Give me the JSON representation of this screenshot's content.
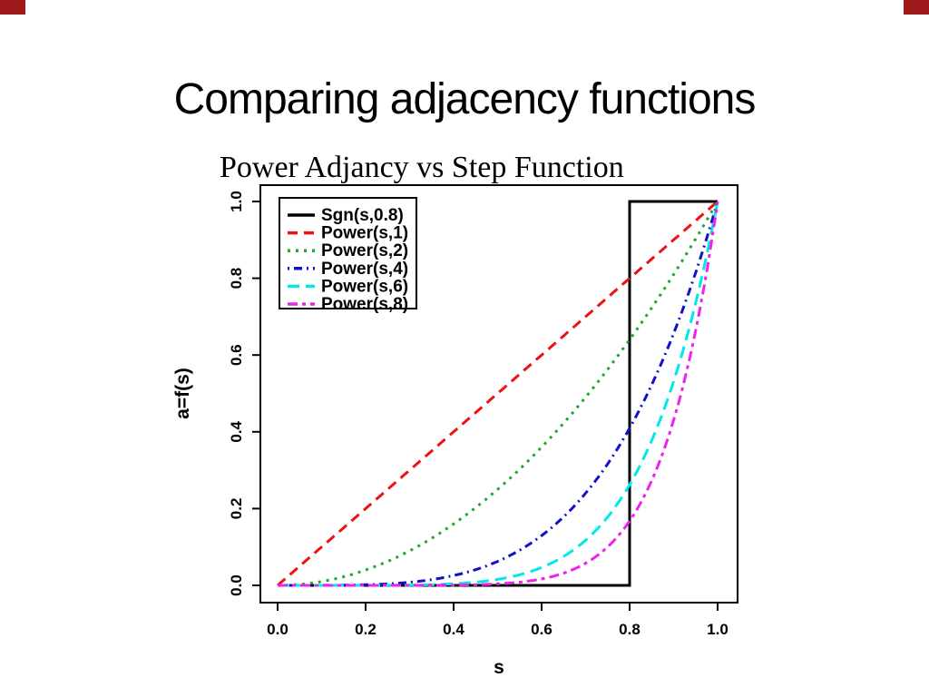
{
  "slide": {
    "title": "Comparing adjacency functions",
    "accent_color": "#9e1a1a"
  },
  "chart_data": {
    "type": "line",
    "title": "Power Adjancy vs Step Function",
    "xlabel": "s",
    "ylabel": "a=f(s)",
    "xlim": [
      0,
      1
    ],
    "ylim": [
      0,
      1
    ],
    "grid": false,
    "legend_position": "top-left",
    "xticks": [
      0.0,
      0.2,
      0.4,
      0.6,
      0.8,
      1.0
    ],
    "yticks": [
      0.0,
      0.2,
      0.4,
      0.6,
      0.8,
      1.0
    ],
    "xtick_labels": [
      "0.0",
      "0.2",
      "0.4",
      "0.6",
      "0.8",
      "1.0"
    ],
    "ytick_labels": [
      "0.0",
      "0.2",
      "0.4",
      "0.6",
      "0.8",
      "1.0"
    ],
    "series": [
      {
        "name": "Sgn(s,0.8)",
        "color": "#000000",
        "style": "solid",
        "kind": "step",
        "threshold": 0.8,
        "description": "0 for s<0.8, 1 for s>=0.8"
      },
      {
        "name": "Power(s,1)",
        "color": "#ee1111",
        "style": "dashed",
        "kind": "power",
        "exponent": 1
      },
      {
        "name": "Power(s,2)",
        "color": "#18aa28",
        "style": "dotted",
        "kind": "power",
        "exponent": 2
      },
      {
        "name": "Power(s,4)",
        "color": "#1111cc",
        "style": "dashdot",
        "kind": "power",
        "exponent": 4
      },
      {
        "name": "Power(s,6)",
        "color": "#00e8e8",
        "style": "longdash",
        "kind": "power",
        "exponent": 6
      },
      {
        "name": "Power(s,8)",
        "color": "#ee22ee",
        "style": "twodash",
        "kind": "power",
        "exponent": 8
      }
    ]
  }
}
